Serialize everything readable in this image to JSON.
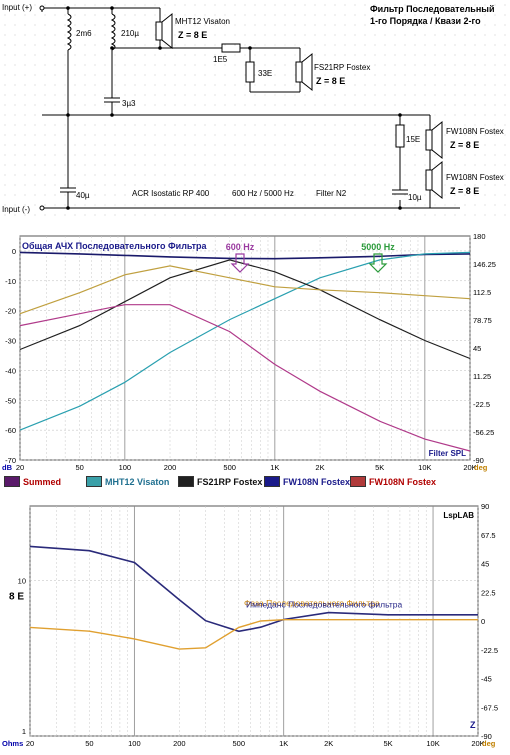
{
  "schematic": {
    "title_line1": "Фильтр Последовательный",
    "title_line2": "1-го Порядка / Квази 2-го",
    "input_plus": "Input (+)",
    "input_minus": "Input (-)",
    "l1": "2m6",
    "l2": "210µ",
    "c1": "3µ3",
    "r_series": "1E5",
    "r_shunt": "33E",
    "r_fw": "15E",
    "c_bottom_left": "40µ",
    "c_bottom_right": "10µ",
    "tw_name": "MHT12 Visaton",
    "tw_imp": "Z = 8 E",
    "mid_name": "FS21RP Fostex",
    "mid_imp": "Z = 8 E",
    "fw1_name": "FW108N Fostex",
    "fw1_imp": "Z = 8 E",
    "fw2_name": "FW108N Fostex",
    "fw2_imp": "Z = 8 E",
    "caption_acr": "ACR Isostatic RP 400",
    "caption_freq": "600 Hz / 5000 Hz",
    "caption_filter": "Filter N2"
  },
  "spl_chart": {
    "title": "Общая АЧХ Последовательного Фильтра",
    "marker1": "600 Hz",
    "marker2": "5000 Hz",
    "corner_label": "Filter SPL",
    "unit_left": "dB",
    "unit_right": "deg",
    "y_ticks": [
      "0",
      "-10",
      "-20",
      "-30",
      "-40",
      "-50",
      "-60",
      "-70"
    ],
    "y2_ticks": [
      "180",
      "146.25",
      "112.5",
      "78.75",
      "45",
      "11.25",
      "-22.5",
      "-56.25",
      "-90"
    ],
    "x_ticks": [
      "20",
      "50",
      "100",
      "200",
      "500",
      "1K",
      "2K",
      "5K",
      "10K",
      "20K"
    ]
  },
  "legend": [
    {
      "label": "Summed",
      "color": "#5a1a6a",
      "text_color": "#b00000"
    },
    {
      "label": "MHT12 Visaton",
      "color": "#3aa0a8",
      "text_color": "#207090"
    },
    {
      "label": "FS21RP Fostex",
      "color": "#202020",
      "text_color": "#101010"
    },
    {
      "label": "FW108N Fostex",
      "color": "#1a1a8a",
      "text_color": "#1a1a8a"
    },
    {
      "label": "FW108N Fostex",
      "color": "#b03a3a",
      "text_color": "#b00000"
    }
  ],
  "imp_chart": {
    "brand": "LspLAB",
    "label_phase": "Фаза Последовательного Фильтра",
    "label_imp": "Импеданс Последовательного фильтра",
    "label_8e": "8 E",
    "label_z": "Z",
    "unit_left": "Ohms",
    "unit_right": "deg",
    "y_ticks": [
      "10",
      "1"
    ],
    "y2_ticks": [
      "90",
      "67.5",
      "45",
      "22.5",
      "0",
      "-22.5",
      "-45",
      "-67.5",
      "-90"
    ],
    "x_ticks": [
      "20",
      "50",
      "100",
      "200",
      "500",
      "1K",
      "2K",
      "5K",
      "10K",
      "20K"
    ]
  },
  "chart_data": [
    {
      "type": "line",
      "title": "Общая АЧХ Последовательного Фильтра",
      "xlabel": "",
      "ylabel": "dB",
      "x_scale": "log",
      "xlim": [
        20,
        20000
      ],
      "ylim": [
        -70,
        10
      ],
      "grid": true,
      "series": [
        {
          "name": "Summed",
          "color": "#1a1a6a",
          "x": [
            20,
            50,
            100,
            200,
            500,
            1000,
            2000,
            5000,
            10000,
            20000
          ],
          "y": [
            -0.5,
            -1,
            -1.5,
            -2,
            -2.5,
            -2.6,
            -2.3,
            -1.8,
            -1.2,
            -1
          ]
        },
        {
          "name": "MHT12 Visaton",
          "color": "#2aa0b0",
          "x": [
            20,
            50,
            100,
            200,
            500,
            1000,
            2000,
            5000,
            10000,
            20000
          ],
          "y": [
            -60,
            -52,
            -44,
            -34,
            -23,
            -16,
            -9,
            -3,
            -1,
            -0.5
          ]
        },
        {
          "name": "FS21RP Fostex",
          "color": "#202020",
          "x": [
            20,
            50,
            100,
            200,
            500,
            1000,
            2000,
            5000,
            10000,
            20000
          ],
          "y": [
            -33,
            -25,
            -17,
            -9,
            -3,
            -7,
            -13,
            -23,
            -30,
            -36
          ]
        },
        {
          "name": "FW108N Fostex",
          "color": "#b03a8a",
          "x": [
            20,
            50,
            100,
            200,
            500,
            1000,
            2000,
            5000,
            10000,
            20000
          ],
          "y": [
            -25,
            -21,
            -18,
            -18,
            -27,
            -38,
            -47,
            -57,
            -63,
            -67
          ]
        },
        {
          "name": "FW108N Fostex",
          "color": "#c0a040",
          "x": [
            20,
            50,
            100,
            200,
            500,
            1000,
            2000,
            5000,
            10000,
            20000
          ],
          "y": [
            -21,
            -14,
            -8,
            -5,
            -9,
            -12,
            -13,
            -14,
            -15,
            -16
          ]
        }
      ],
      "annotations": [
        "600 Hz",
        "5000 Hz",
        "Filter SPL"
      ]
    },
    {
      "type": "line",
      "title": "",
      "xlabel": "",
      "ylabel": "Ohms",
      "x_scale": "log",
      "xlim": [
        20,
        20000
      ],
      "grid": true,
      "series": [
        {
          "name": "Импеданс Последовательного фильтра",
          "color": "#2a2a7a",
          "x": [
            20,
            50,
            100,
            200,
            300,
            500,
            700,
            1000,
            2000,
            5000,
            10000,
            20000
          ],
          "y": [
            16.5,
            15.5,
            13,
            7.5,
            5.5,
            4.7,
            5,
            5.6,
            6.2,
            6,
            6,
            6
          ]
        },
        {
          "name": "Фаза Последовательного Фильтра",
          "color": "#e0a030",
          "x": [
            20,
            50,
            100,
            200,
            300,
            500,
            700,
            1000,
            2000,
            5000,
            10000,
            20000
          ],
          "y": [
            -5,
            -8,
            -14,
            -22,
            -21,
            -5,
            0,
            1,
            1,
            1,
            1,
            1
          ]
        }
      ],
      "annotations": [
        "8 E",
        "Z",
        "LspLAB"
      ]
    }
  ]
}
